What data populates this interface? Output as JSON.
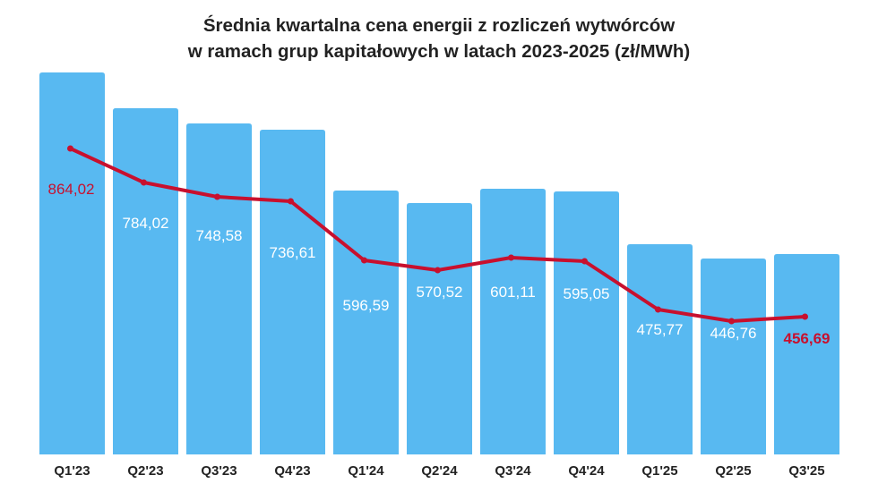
{
  "chart_data": {
    "type": "bar",
    "title_lines": [
      "Średnia kwartalna cena energii z rozliczeń wytwórców",
      "w ramach grup kapitałowych w latach 2023-2025 (zł/MWh)"
    ],
    "categories": [
      "Q1'23",
      "Q2'23",
      "Q3'23",
      "Q4'23",
      "Q1'24",
      "Q2'24",
      "Q3'24",
      "Q4'24",
      "Q1'25",
      "Q2'25",
      "Q3'25"
    ],
    "values": [
      864.02,
      784.02,
      748.58,
      736.61,
      596.59,
      570.52,
      601.11,
      595.05,
      475.77,
      446.76,
      456.69
    ],
    "value_labels": [
      "864,02",
      "784,02",
      "748,58",
      "736,61",
      "596,59",
      "570,52",
      "601,11",
      "595,05",
      "475,77",
      "446,76",
      "456,69"
    ],
    "overlay_line": true,
    "ylim": [
      0,
      900
    ],
    "grid": false,
    "legend": false,
    "xlabel": "",
    "ylabel": "",
    "colors": {
      "bar": "#58b9f1",
      "line": "#c8102e",
      "label_default": "#ffffff",
      "label_first": "#c8102e",
      "label_last": "#c8102e"
    }
  }
}
